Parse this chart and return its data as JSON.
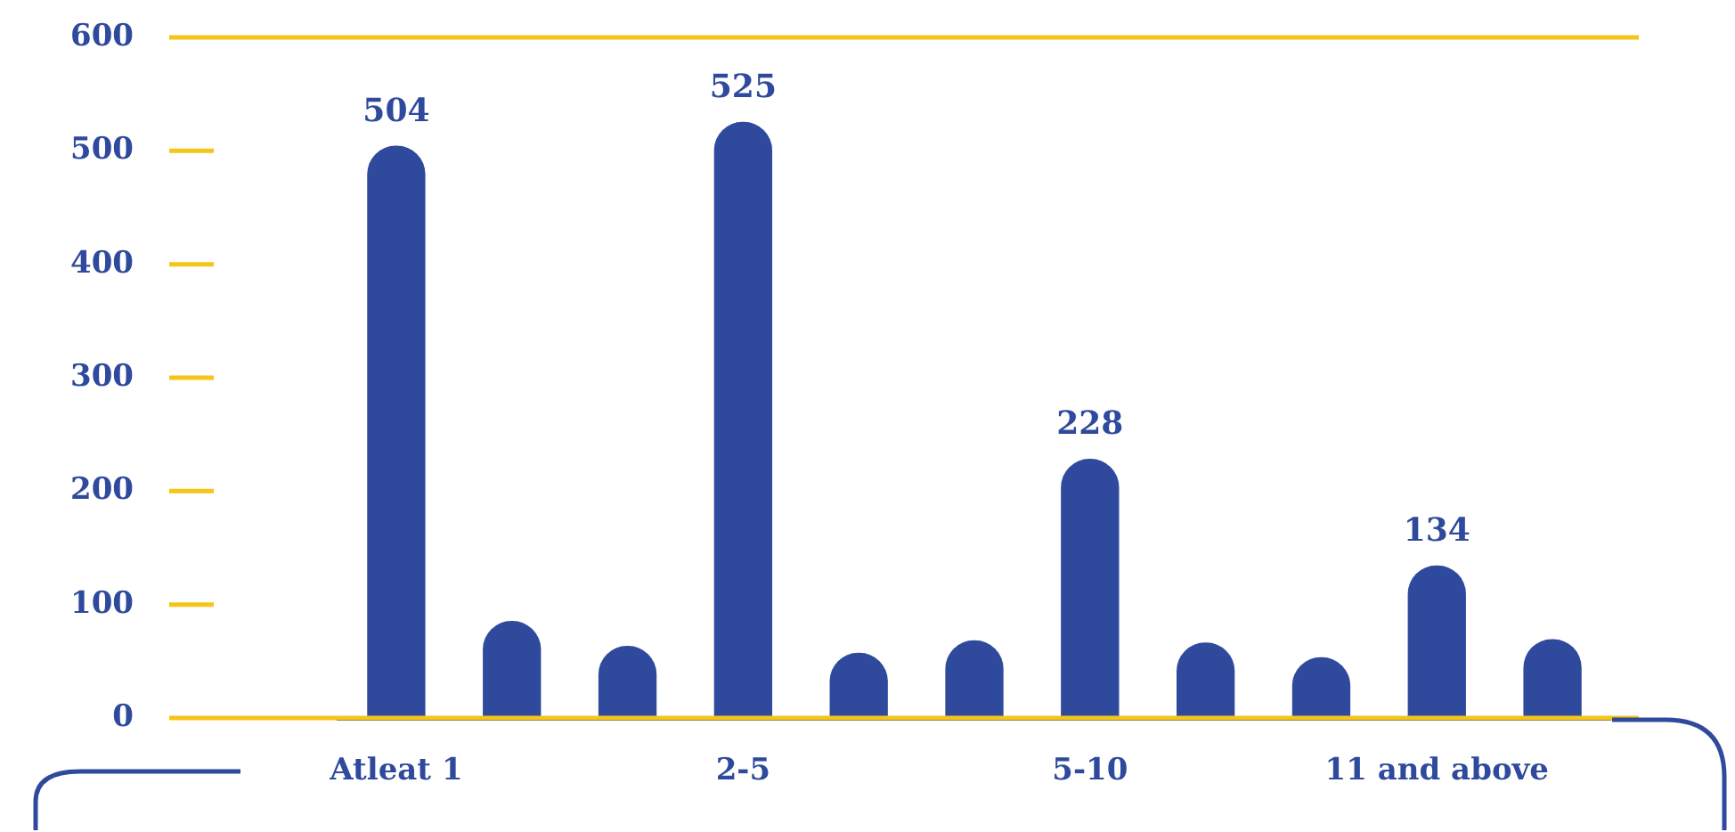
{
  "chart_data": {
    "type": "bar",
    "categories": [
      "Atleat 1",
      null,
      null,
      "2-5",
      null,
      null,
      "5-10",
      null,
      null,
      "11 and above",
      null
    ],
    "values": [
      504,
      85,
      63,
      525,
      57,
      68,
      228,
      66,
      53,
      134,
      69
    ],
    "value_labels": [
      "504",
      null,
      null,
      "525",
      null,
      null,
      "228",
      null,
      null,
      "134",
      null
    ],
    "color": "#2f4a9c",
    "ylim": [
      0,
      600
    ],
    "yticks": [
      0,
      100,
      200,
      300,
      400,
      500,
      600
    ],
    "grid": false,
    "legend": false
  }
}
